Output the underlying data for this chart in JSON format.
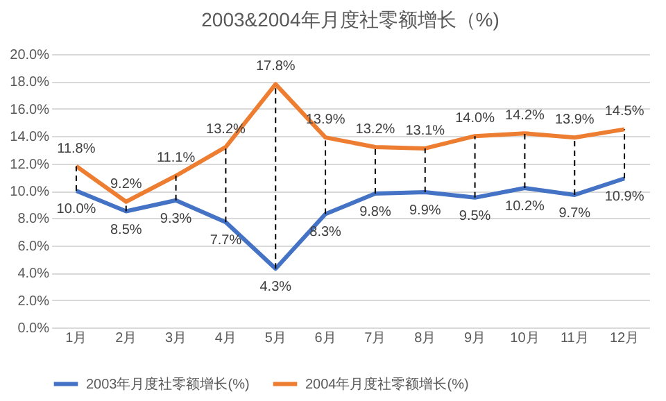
{
  "chart_data": {
    "type": "line",
    "title": "2003&2004年月度社零额增长（%)",
    "categories": [
      "1月",
      "2月",
      "3月",
      "4月",
      "5月",
      "6月",
      "7月",
      "8月",
      "9月",
      "10月",
      "11月",
      "12月"
    ],
    "series": [
      {
        "name": "2003年月度社零额增长(%)",
        "color": "#4472c4",
        "values": [
          10.0,
          8.5,
          9.3,
          7.7,
          4.3,
          8.3,
          9.8,
          9.9,
          9.5,
          10.2,
          9.7,
          10.9
        ],
        "value_labels": [
          "10.0%",
          "8.5%",
          "9.3%",
          "7.7%",
          "4.3%",
          "8.3%",
          "9.8%",
          "9.9%",
          "9.5%",
          "10.2%",
          "9.7%",
          "10.9%"
        ]
      },
      {
        "name": "2004年月度社零额增长(%)",
        "color": "#ed7d31",
        "values": [
          11.8,
          9.2,
          11.1,
          13.2,
          17.8,
          13.9,
          13.2,
          13.1,
          14.0,
          14.2,
          13.9,
          14.5
        ],
        "value_labels": [
          "11.8%",
          "9.2%",
          "11.1%",
          "13.2%",
          "17.8%",
          "13.9%",
          "13.2%",
          "13.1%",
          "14.0%",
          "14.2%",
          "13.9%",
          "14.5%"
        ]
      }
    ],
    "ylim": [
      0,
      20
    ],
    "yticks": [
      {
        "value": 0,
        "label": "0.0%"
      },
      {
        "value": 2,
        "label": "2.0%"
      },
      {
        "value": 4,
        "label": "4.0%"
      },
      {
        "value": 6,
        "label": "6.0%"
      },
      {
        "value": 8,
        "label": "8.0%"
      },
      {
        "value": 10,
        "label": "10.0%"
      },
      {
        "value": 12,
        "label": "12.0%"
      },
      {
        "value": 14,
        "label": "14.0%"
      },
      {
        "value": 16,
        "label": "16.0%"
      },
      {
        "value": 18,
        "label": "18.0%"
      },
      {
        "value": 20,
        "label": "20.0%"
      }
    ],
    "grid": "y",
    "legend": "bottom",
    "marker": "none",
    "line_style": "solid"
  }
}
